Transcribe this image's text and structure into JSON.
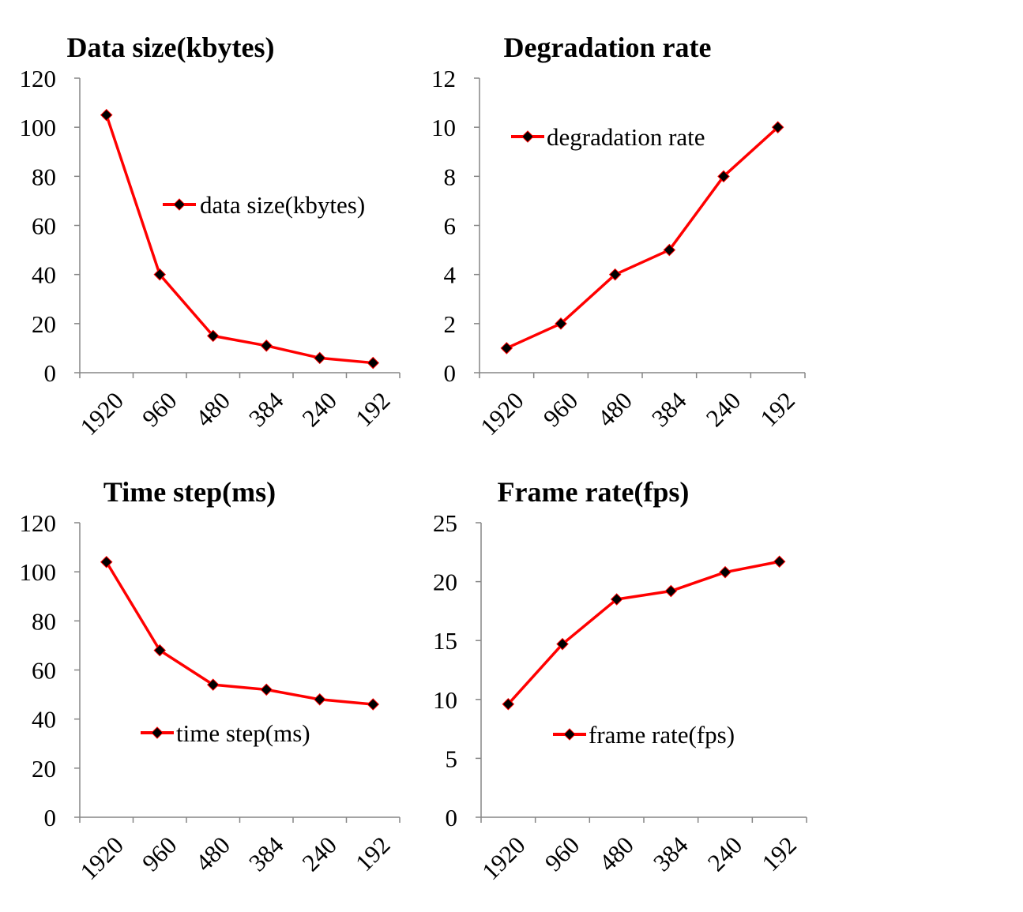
{
  "colors": {
    "series_line": "#ff0000",
    "marker_fill": "#000000",
    "marker_stroke": "#ff0000"
  },
  "chart_data": [
    {
      "type": "line",
      "title": "Data size(kbytes)",
      "categories": [
        "1920",
        "960",
        "480",
        "384",
        "240",
        "192"
      ],
      "series": [
        {
          "name": "data size(kbytes)",
          "values": [
            105,
            40,
            15,
            11,
            6,
            4
          ]
        }
      ],
      "ylim": [
        0,
        120
      ],
      "yticks": [
        "0",
        "20",
        "40",
        "60",
        "80",
        "100",
        "120"
      ],
      "grid": false,
      "legend_position": "right-middle"
    },
    {
      "type": "line",
      "title": "Degradation rate",
      "categories": [
        "1920",
        "960",
        "480",
        "384",
        "240",
        "192"
      ],
      "series": [
        {
          "name": "degradation rate",
          "values": [
            1,
            2,
            4,
            5,
            8,
            10
          ]
        }
      ],
      "ylim": [
        0,
        12
      ],
      "yticks": [
        "0",
        "2",
        "4",
        "6",
        "8",
        "10",
        "12"
      ],
      "grid": false,
      "legend_position": "top-left"
    },
    {
      "type": "line",
      "title": "Time step(ms)",
      "categories": [
        "1920",
        "960",
        "480",
        "384",
        "240",
        "192"
      ],
      "series": [
        {
          "name": "time step(ms)",
          "values": [
            104,
            68,
            54,
            52,
            48,
            46
          ]
        }
      ],
      "ylim": [
        0,
        120
      ],
      "yticks": [
        "0",
        "20",
        "40",
        "60",
        "80",
        "100",
        "120"
      ],
      "grid": false,
      "legend_position": "bottom-middle"
    },
    {
      "type": "line",
      "title": "Frame rate(fps)",
      "categories": [
        "1920",
        "960",
        "480",
        "384",
        "240",
        "192"
      ],
      "series": [
        {
          "name": "frame rate(fps)",
          "values": [
            9.6,
            14.7,
            18.5,
            19.2,
            20.8,
            21.7
          ]
        }
      ],
      "ylim": [
        0,
        25
      ],
      "yticks": [
        "0",
        "5",
        "10",
        "15",
        "20",
        "25"
      ],
      "grid": false,
      "legend_position": "bottom-middle"
    }
  ]
}
